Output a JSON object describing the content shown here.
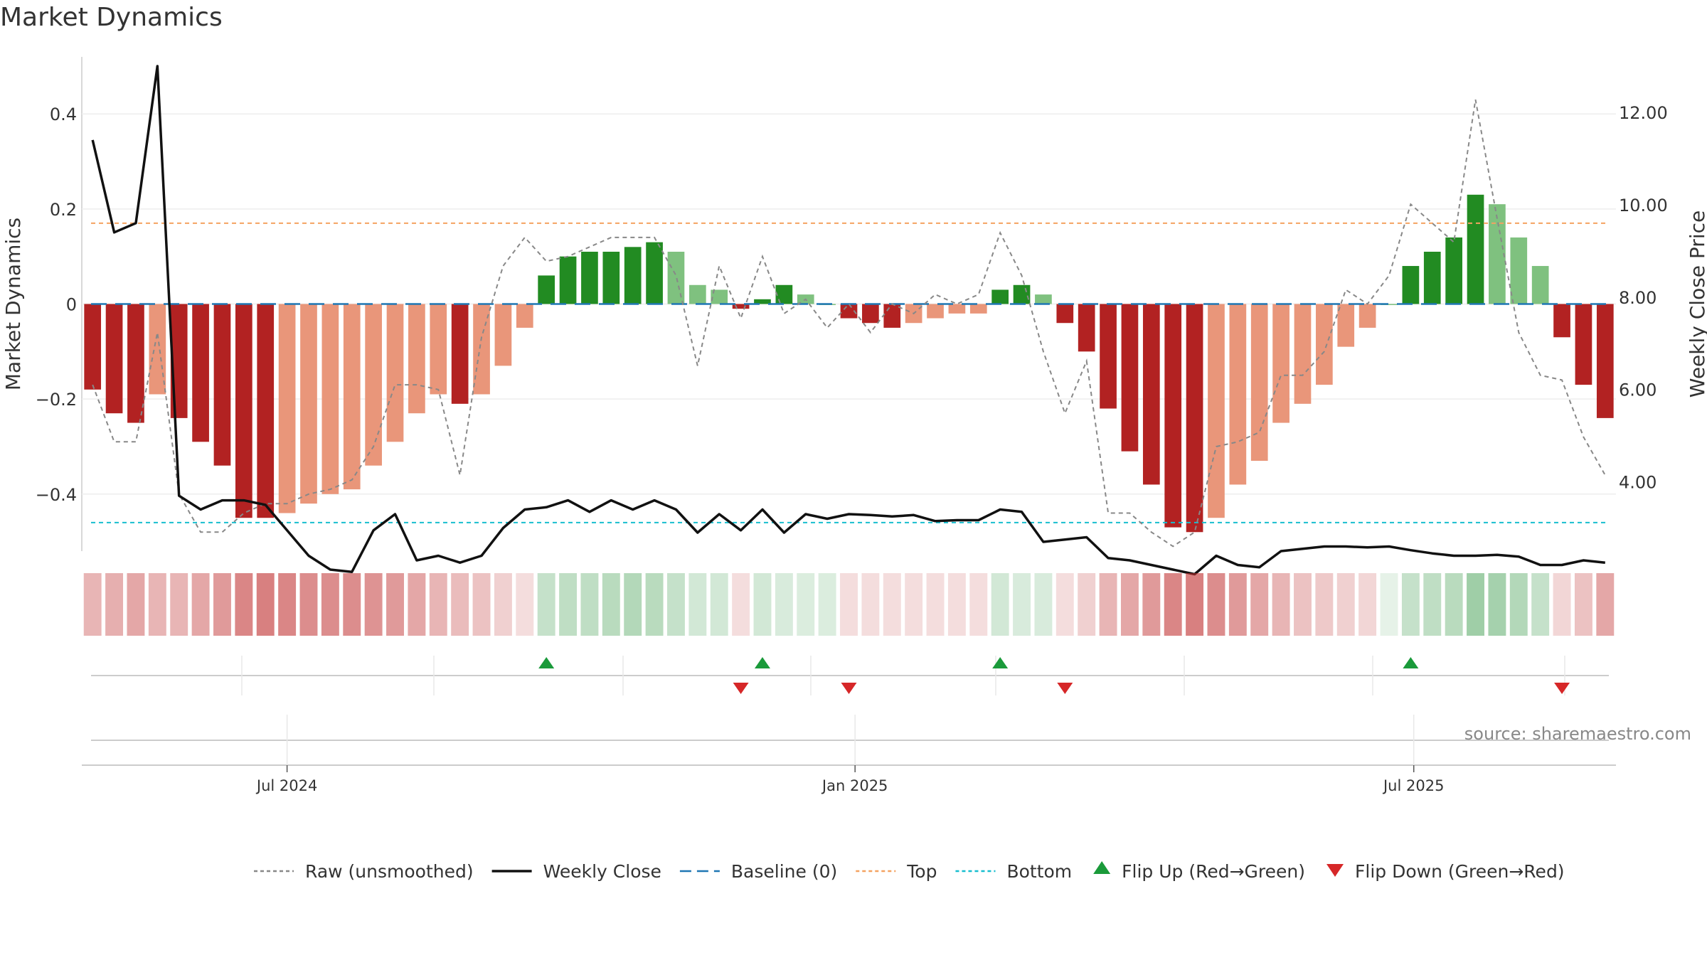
{
  "chart_data": {
    "type": "bar",
    "title": "Market Dynamics",
    "ylabel": "Market Dynamics",
    "y2label": "Weekly Close Price",
    "ylim": [
      -0.52,
      0.52
    ],
    "y2lim": [
      2.5,
      13.2
    ],
    "yticks": [
      0.4,
      0.2,
      0,
      -0.2,
      -0.4
    ],
    "ytick_labels": [
      "0.4",
      "0.2",
      "0",
      "−0.2",
      "−0.4"
    ],
    "y2ticks": [
      12,
      10,
      8,
      6,
      4
    ],
    "y2tick_labels": [
      "12.00",
      "10.00",
      "8.00",
      "6.00",
      "4.00"
    ],
    "xticks": [
      "2024-07-01",
      "2025-01-01",
      "2025-07-01"
    ],
    "xtick_labels": [
      "Jul 2024",
      "Jan 2025",
      "Jul 2025"
    ],
    "x_start": "2024-04-29",
    "top_line": 0.17,
    "bottom_line": -0.46,
    "source": "source: sharemaestro.com",
    "legend": [
      {
        "label": "Raw (unsmoothed)",
        "kind": "dotted",
        "color": "#888888"
      },
      {
        "label": "Weekly Close",
        "kind": "solid",
        "color": "#111111"
      },
      {
        "label": "Baseline (0)",
        "kind": "dashed",
        "color": "#1f77b4"
      },
      {
        "label": "Top",
        "kind": "dotted",
        "color": "#f4a261"
      },
      {
        "label": "Bottom",
        "kind": "dotted",
        "color": "#17becf"
      },
      {
        "label": "Flip Up (Red→Green)",
        "kind": "up",
        "color": "#1a9a3a"
      },
      {
        "label": "Flip Down (Green→Red)",
        "kind": "down",
        "color": "#d62728"
      }
    ],
    "colors": {
      "strong_red": "#b22222",
      "weak_red": "#e9967a",
      "strong_green": "#228b22",
      "weak_green": "#7fc17f",
      "baseline": "#1f77b4",
      "top": "#f4a261",
      "bottom": "#17becf"
    },
    "bars": [
      -0.18,
      -0.23,
      -0.25,
      -0.19,
      -0.24,
      -0.29,
      -0.34,
      -0.45,
      -0.45,
      -0.44,
      -0.42,
      -0.4,
      -0.39,
      -0.34,
      -0.29,
      -0.23,
      -0.19,
      -0.21,
      -0.19,
      -0.13,
      -0.05,
      0.06,
      0.1,
      0.11,
      0.11,
      0.12,
      0.13,
      0.11,
      0.04,
      0.03,
      -0.01,
      0.01,
      0.04,
      0.02,
      0.0,
      -0.03,
      -0.04,
      -0.05,
      -0.04,
      -0.03,
      -0.02,
      -0.02,
      0.03,
      0.04,
      0.02,
      -0.04,
      -0.1,
      -0.22,
      -0.31,
      -0.38,
      -0.47,
      -0.48,
      -0.45,
      -0.38,
      -0.33,
      -0.25,
      -0.21,
      -0.17,
      -0.09,
      -0.05,
      0.0,
      0.08,
      0.11,
      0.14,
      0.23,
      0.21,
      0.14,
      0.08,
      -0.07,
      -0.17,
      -0.24
    ],
    "bar_strength": [
      "strong",
      "strong",
      "strong",
      "weak",
      "strong",
      "strong",
      "strong",
      "strong",
      "strong",
      "weak",
      "weak",
      "weak",
      "weak",
      "weak",
      "weak",
      "weak",
      "weak",
      "strong",
      "weak",
      "weak",
      "weak",
      "strong",
      "strong",
      "strong",
      "strong",
      "strong",
      "strong",
      "weak",
      "weak",
      "weak",
      "strong",
      "strong",
      "strong",
      "weak",
      "weak",
      "strong",
      "strong",
      "strong",
      "weak",
      "weak",
      "weak",
      "weak",
      "strong",
      "strong",
      "weak",
      "strong",
      "strong",
      "strong",
      "strong",
      "strong",
      "strong",
      "strong",
      "weak",
      "weak",
      "weak",
      "weak",
      "weak",
      "weak",
      "weak",
      "weak",
      "weak",
      "strong",
      "strong",
      "strong",
      "strong",
      "weak",
      "weak",
      "weak",
      "strong",
      "strong",
      "strong"
    ],
    "raw": [
      -0.17,
      -0.29,
      -0.29,
      -0.06,
      -0.4,
      -0.48,
      -0.48,
      -0.44,
      -0.42,
      -0.42,
      -0.4,
      -0.39,
      -0.37,
      -0.3,
      -0.17,
      -0.17,
      -0.18,
      -0.36,
      -0.07,
      0.08,
      0.14,
      0.09,
      0.1,
      0.12,
      0.14,
      0.14,
      0.14,
      0.06,
      -0.13,
      0.08,
      -0.03,
      0.1,
      -0.02,
      0.01,
      -0.05,
      0.0,
      -0.06,
      0.0,
      -0.02,
      0.02,
      0.0,
      0.02,
      0.15,
      0.06,
      -0.1,
      -0.23,
      -0.12,
      -0.44,
      -0.44,
      -0.48,
      -0.51,
      -0.48,
      -0.3,
      -0.29,
      -0.27,
      -0.15,
      -0.15,
      -0.1,
      0.03,
      0.0,
      0.06,
      0.21,
      0.17,
      0.13,
      0.43,
      0.18,
      -0.06,
      -0.15,
      -0.16,
      -0.28,
      -0.36
    ],
    "close": [
      11.4,
      9.4,
      9.6,
      13.0,
      3.7,
      3.4,
      3.6,
      3.6,
      3.5,
      2.95,
      2.4,
      2.1,
      2.05,
      2.95,
      3.3,
      2.3,
      2.4,
      2.25,
      2.4,
      3.0,
      3.4,
      3.45,
      3.6,
      3.35,
      3.6,
      3.4,
      3.6,
      3.4,
      2.9,
      3.3,
      2.95,
      3.4,
      2.9,
      3.3,
      3.2,
      3.3,
      3.28,
      3.25,
      3.28,
      3.15,
      3.17,
      3.17,
      3.4,
      3.35,
      2.7,
      2.75,
      2.8,
      2.35,
      2.3,
      2.2,
      2.1,
      2.0,
      2.4,
      2.2,
      2.15,
      2.5,
      2.55,
      2.6,
      2.6,
      2.58,
      2.6,
      2.52,
      2.45,
      2.4,
      2.4,
      2.42,
      2.38,
      2.2,
      2.2,
      2.3,
      2.25
    ],
    "flips_up": [
      21,
      31,
      42,
      61
    ],
    "flips_down": [
      30,
      35,
      45,
      68
    ],
    "heat_intensity": [
      0.55,
      0.6,
      0.65,
      0.55,
      0.55,
      0.65,
      0.75,
      0.9,
      0.95,
      0.9,
      0.85,
      0.85,
      0.85,
      0.8,
      0.75,
      0.65,
      0.55,
      0.5,
      0.45,
      0.35,
      0.25,
      0.45,
      0.5,
      0.5,
      0.55,
      0.6,
      0.55,
      0.45,
      0.35,
      0.35,
      0.25,
      0.35,
      0.3,
      0.28,
      0.28,
      0.25,
      0.25,
      0.25,
      0.25,
      0.25,
      0.25,
      0.25,
      0.35,
      0.3,
      0.3,
      0.25,
      0.35,
      0.55,
      0.65,
      0.75,
      0.9,
      0.95,
      0.85,
      0.75,
      0.65,
      0.55,
      0.45,
      0.4,
      0.35,
      0.3,
      0.2,
      0.45,
      0.5,
      0.55,
      0.75,
      0.7,
      0.6,
      0.45,
      0.3,
      0.45,
      0.65
    ]
  }
}
